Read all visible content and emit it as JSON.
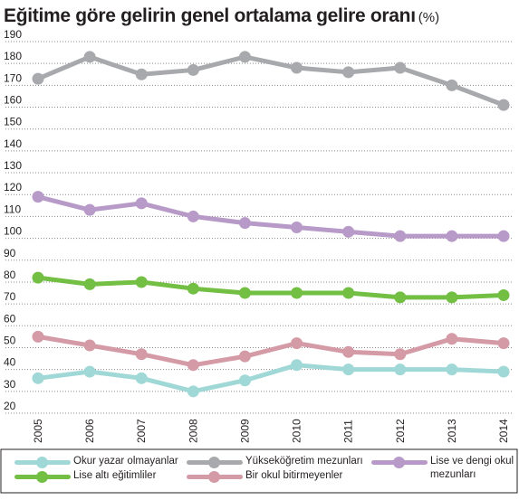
{
  "title": "Eğitime göre gelirin genel ortalama gelire oranı",
  "title_unit": "(%)",
  "chart_data": {
    "type": "line",
    "title": "Eğitime göre gelirin genel ortalama gelire oranı (%)",
    "xlabel": "",
    "ylabel": "",
    "x": [
      "2005",
      "2006",
      "2007",
      "2008",
      "2009",
      "2010",
      "2011",
      "2012",
      "2013",
      "2014"
    ],
    "ylim": [
      20,
      190
    ],
    "yticks": [
      20,
      30,
      40,
      50,
      60,
      70,
      80,
      90,
      100,
      110,
      120,
      130,
      140,
      150,
      160,
      170,
      180,
      190
    ],
    "grid": "horizontal-dotted",
    "legend_position": "bottom",
    "series": [
      {
        "name": "Okur yazar olmayanlar",
        "color": "#9fd8d6",
        "values": [
          36,
          39,
          36,
          30,
          35,
          42,
          40,
          40,
          40,
          39
        ]
      },
      {
        "name": "Yükseköğretim mezunları",
        "color": "#a7a9ac",
        "values": [
          173,
          183,
          175,
          177,
          183,
          178,
          176,
          178,
          170,
          161
        ]
      },
      {
        "name": "Lise ve dengi okul mezunları",
        "color": "#b79ac8",
        "values": [
          119,
          113,
          116,
          110,
          107,
          105,
          103,
          101,
          101,
          101
        ]
      },
      {
        "name": "Lise altı eğitimliler",
        "color": "#72bf44",
        "values": [
          82,
          79,
          80,
          77,
          75,
          75,
          75,
          73,
          73,
          74
        ]
      },
      {
        "name": "Bir okul bitirmeyenler",
        "color": "#d49aa5",
        "values": [
          55,
          51,
          47,
          42,
          46,
          52,
          48,
          47,
          54,
          52
        ]
      }
    ]
  },
  "legend": [
    {
      "label": "Okur yazar olmayanlar"
    },
    {
      "label": "Yükseköğretim mezunları"
    },
    {
      "label_line1": "Lise ve dengi okul",
      "label_line2": "mezunları"
    },
    {
      "label": "Lise altı eğitimliler"
    },
    {
      "label": "Bir okul bitirmeyenler"
    }
  ]
}
